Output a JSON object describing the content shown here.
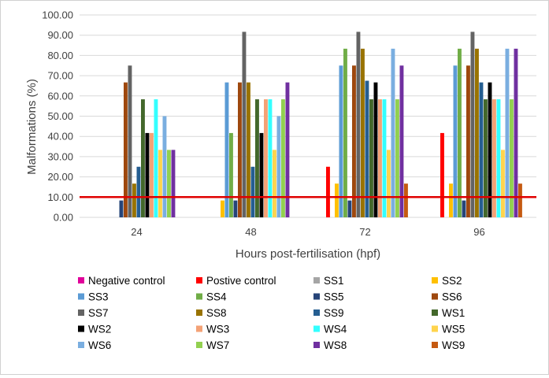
{
  "chart_data": {
    "type": "bar",
    "xlabel": "Hours post-fertilisation (hpf)",
    "ylabel": "Malformations (%)",
    "ylim": [
      0,
      100
    ],
    "yticks": [
      "0.00",
      "10.00",
      "20.00",
      "30.00",
      "40.00",
      "50.00",
      "60.00",
      "70.00",
      "80.00",
      "90.00",
      "100.00"
    ],
    "categories": [
      "24",
      "48",
      "72",
      "96"
    ],
    "threshold": 10,
    "threshold_color": "#e00000",
    "grid": true,
    "legend_position": "bottom",
    "series": [
      {
        "name": "Negative control",
        "color": "#e0009a",
        "values": [
          0,
          0,
          0,
          0
        ]
      },
      {
        "name": "Postive control",
        "color": "#ff0000",
        "values": [
          0,
          0,
          25,
          41.67
        ]
      },
      {
        "name": "SS1",
        "color": "#a5a5a5",
        "values": [
          0,
          0,
          0,
          0
        ]
      },
      {
        "name": "SS2",
        "color": "#ffc000",
        "values": [
          0,
          8.33,
          16.67,
          16.67
        ]
      },
      {
        "name": "SS3",
        "color": "#5b9bd5",
        "values": [
          0,
          66.67,
          75,
          75
        ]
      },
      {
        "name": "SS4",
        "color": "#70ad47",
        "values": [
          0,
          41.67,
          83.33,
          83.33
        ]
      },
      {
        "name": "SS5",
        "color": "#264478",
        "values": [
          8.33,
          8.33,
          8.33,
          8.33
        ]
      },
      {
        "name": "SS6",
        "color": "#9e480e",
        "values": [
          66.67,
          66.67,
          75,
          75
        ]
      },
      {
        "name": "SS7",
        "color": "#636363",
        "values": [
          75,
          91.67,
          91.67,
          91.67
        ]
      },
      {
        "name": "SS8",
        "color": "#997300",
        "values": [
          16.67,
          66.67,
          83.33,
          83.33
        ]
      },
      {
        "name": "SS9",
        "color": "#255e91",
        "values": [
          25,
          25,
          67.5,
          66.67
        ]
      },
      {
        "name": "WS1",
        "color": "#43682b",
        "values": [
          58.33,
          58.33,
          58.33,
          58.33
        ]
      },
      {
        "name": "WS2",
        "color": "#000000",
        "values": [
          41.67,
          41.67,
          66.67,
          66.67
        ]
      },
      {
        "name": "WS3",
        "color": "#f4a276",
        "values": [
          41.67,
          58.33,
          58.33,
          58.33
        ]
      },
      {
        "name": "WS4",
        "color": "#33ffff",
        "values": [
          58.33,
          58.33,
          58.33,
          58.33
        ]
      },
      {
        "name": "WS5",
        "color": "#ffd44d",
        "values": [
          33.33,
          33.33,
          33.33,
          33.33
        ]
      },
      {
        "name": "WS6",
        "color": "#7aaee0",
        "values": [
          50,
          50,
          83.33,
          83.33
        ]
      },
      {
        "name": "WS7",
        "color": "#92d050",
        "values": [
          33.33,
          58.33,
          58.33,
          58.33
        ]
      },
      {
        "name": "WS8",
        "color": "#7030a0",
        "values": [
          33.33,
          66.67,
          75,
          83.33
        ]
      },
      {
        "name": "WS9",
        "color": "#c55a11",
        "values": [
          0,
          0,
          16.67,
          16.67
        ]
      }
    ]
  }
}
